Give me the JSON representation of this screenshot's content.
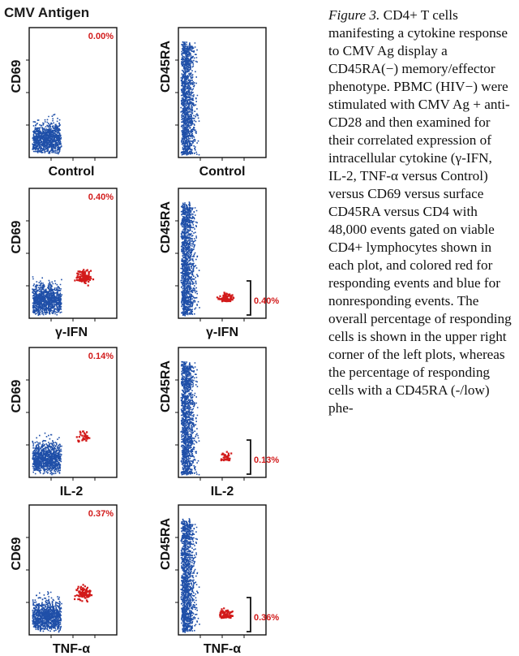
{
  "figure_title": "CMV Antigen",
  "colors": {
    "responding": "#d21a1a",
    "nonresponding": "#1f4fa8",
    "axis": "#111111"
  },
  "panels": [
    {
      "id": "control-cd69",
      "ylabel": "CD69",
      "xlabel": "Control",
      "percent": "0.00%"
    },
    {
      "id": "control-cd45ra",
      "ylabel": "CD45RA",
      "xlabel": "Control",
      "percent": ""
    },
    {
      "id": "ifn-cd69",
      "ylabel": "CD69",
      "xlabel": "γ-IFN",
      "percent": "0.40%"
    },
    {
      "id": "ifn-cd45ra",
      "ylabel": "CD45RA",
      "xlabel": "γ-IFN",
      "percent": "0.40%"
    },
    {
      "id": "il2-cd69",
      "ylabel": "CD69",
      "xlabel": "IL-2",
      "percent": "0.14%"
    },
    {
      "id": "il2-cd45ra",
      "ylabel": "CD45RA",
      "xlabel": "IL-2",
      "percent": "0.13%"
    },
    {
      "id": "tnf-cd69",
      "ylabel": "CD69",
      "xlabel": "TNF-α",
      "percent": "0.37%"
    },
    {
      "id": "tnf-cd45ra",
      "ylabel": "CD45RA",
      "xlabel": "TNF-α",
      "percent": "0.36%"
    }
  ],
  "caption": {
    "label": "Figure 3.",
    "text": "CD4+ T cells manifesting a cytokine response to CMV Ag display a CD45RA(−) memory/effector phenotype. PBMC (HIV−) were stimulated with CMV Ag + anti-CD28 and then examined for their correlated expression of intracellular cytokine (γ-IFN, IL-2, TNF-α versus Control) versus CD69 versus surface CD45RA versus CD4 with 48,000 events gated on viable CD4+ lymphocytes shown in each plot, and colored red for responding events and blue for nonresponding events. The overall percentage of responding cells is shown in the upper right corner of the left plots, whereas the percentage of responding cells with a CD45RA (-/low) phe-"
  }
}
